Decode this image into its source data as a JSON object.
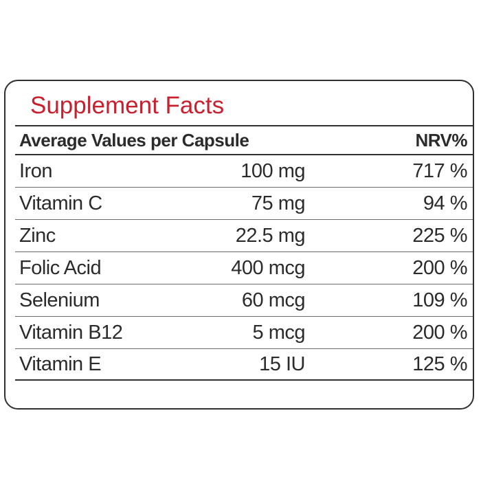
{
  "title": "Supplement Facts",
  "header": {
    "label": "Average Values per Capsule",
    "nrv": "NRV%"
  },
  "rows": [
    {
      "name": "Iron",
      "amount": "100 mg",
      "nrv": "717 %"
    },
    {
      "name": "Vitamin C",
      "amount": "75 mg",
      "nrv": "94 %"
    },
    {
      "name": "Zinc",
      "amount": "22.5 mg",
      "nrv": "225 %"
    },
    {
      "name": "Folic Acid",
      "amount": "400 mcg",
      "nrv": "200 %"
    },
    {
      "name": "Selenium",
      "amount": "60 mcg",
      "nrv": "109 %"
    },
    {
      "name": "Vitamin B12",
      "amount": "5 mcg",
      "nrv": "200 %"
    },
    {
      "name": "Vitamin E",
      "amount": "15 IU",
      "nrv": "125 %"
    }
  ],
  "colors": {
    "title": "#c8202e",
    "text": "#2b2b2b",
    "border": "#2f2f2f"
  }
}
